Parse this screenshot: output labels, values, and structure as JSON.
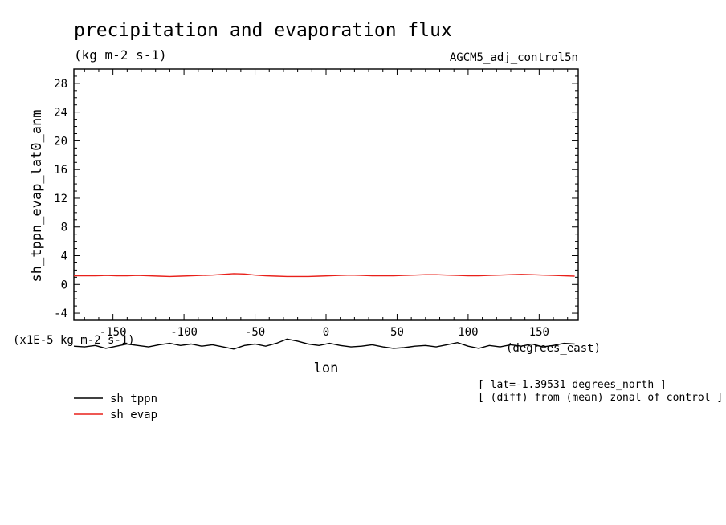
{
  "chart_data": {
    "type": "line",
    "title": "precipitation and evaporation flux",
    "subtitle": "(kg m-2 s-1)",
    "run_label": "AGCM5_adj_control5n",
    "ylabel": "sh_tppn_evap_lat0_anm",
    "xlabel": "lon",
    "x_units": "(degrees_east)",
    "y_scale_note": "(x1E-5 kg m-2 s-1)",
    "xlim": [
      -177.5,
      177.5
    ],
    "ylim": [
      -5,
      30
    ],
    "x_ticks": [
      -150,
      -100,
      -50,
      0,
      50,
      100,
      150
    ],
    "x_tick_labels": [
      "-150",
      "-100",
      "-50",
      "0",
      "50",
      "100",
      "150"
    ],
    "y_ticks": [
      -4,
      0,
      4,
      8,
      12,
      16,
      20,
      24,
      28
    ],
    "y_tick_labels": [
      "-4",
      "0",
      "4",
      "8",
      "12",
      "16",
      "20",
      "24",
      "28"
    ],
    "grid": false,
    "legend_position": "bottom-left",
    "notes": [
      "[ lat=-1.39531 degrees_north ]",
      "[ (diff) from (mean) zonal of control ]"
    ],
    "colors": {
      "sh_tppn": "#000000",
      "sh_evap": "#e8201a"
    },
    "series": [
      {
        "name": "sh_tppn",
        "x": [
          -177.5,
          -170,
          -162.5,
          -155,
          -147.5,
          -140,
          -132.5,
          -125,
          -117.5,
          -110,
          -102.5,
          -95,
          -87.5,
          -80,
          -72.5,
          -65,
          -57.5,
          -50,
          -42.5,
          -35,
          -27.5,
          -20,
          -12.5,
          -5,
          2.5,
          10,
          17.5,
          25,
          32.5,
          40,
          47.5,
          55,
          62.5,
          70,
          77.5,
          85,
          92.5,
          100,
          107.5,
          115,
          122.5,
          130,
          137.5,
          145,
          152.5,
          160,
          167.5,
          175
        ],
        "y": [
          -8.6,
          -8.7,
          -8.5,
          -8.9,
          -8.6,
          -8.3,
          -8.5,
          -8.7,
          -8.4,
          -8.2,
          -8.5,
          -8.3,
          -8.6,
          -8.4,
          -8.7,
          -9.0,
          -8.5,
          -8.3,
          -8.6,
          -8.2,
          -7.6,
          -7.9,
          -8.3,
          -8.5,
          -8.2,
          -8.5,
          -8.7,
          -8.6,
          -8.4,
          -8.7,
          -8.9,
          -8.8,
          -8.6,
          -8.5,
          -8.7,
          -8.4,
          -8.1,
          -8.6,
          -8.9,
          -8.5,
          -8.7,
          -8.4,
          -8.6,
          -8.3,
          -8.7,
          -8.5,
          -8.2,
          -8.3
        ]
      },
      {
        "name": "sh_evap",
        "x": [
          -177.5,
          -170,
          -162.5,
          -155,
          -147.5,
          -140,
          -132.5,
          -125,
          -117.5,
          -110,
          -102.5,
          -95,
          -87.5,
          -80,
          -72.5,
          -65,
          -57.5,
          -50,
          -42.5,
          -35,
          -27.5,
          -20,
          -12.5,
          -5,
          2.5,
          10,
          17.5,
          25,
          32.5,
          40,
          47.5,
          55,
          62.5,
          70,
          77.5,
          85,
          92.5,
          100,
          107.5,
          115,
          122.5,
          130,
          137.5,
          145,
          152.5,
          160,
          167.5,
          175
        ],
        "y": [
          1.2,
          1.2,
          1.2,
          1.25,
          1.2,
          1.2,
          1.25,
          1.2,
          1.15,
          1.1,
          1.15,
          1.2,
          1.25,
          1.3,
          1.4,
          1.5,
          1.45,
          1.3,
          1.2,
          1.15,
          1.1,
          1.1,
          1.1,
          1.15,
          1.2,
          1.25,
          1.3,
          1.25,
          1.2,
          1.2,
          1.2,
          1.25,
          1.3,
          1.35,
          1.35,
          1.3,
          1.25,
          1.2,
          1.2,
          1.25,
          1.3,
          1.35,
          1.4,
          1.35,
          1.3,
          1.25,
          1.2,
          1.15
        ]
      }
    ]
  }
}
